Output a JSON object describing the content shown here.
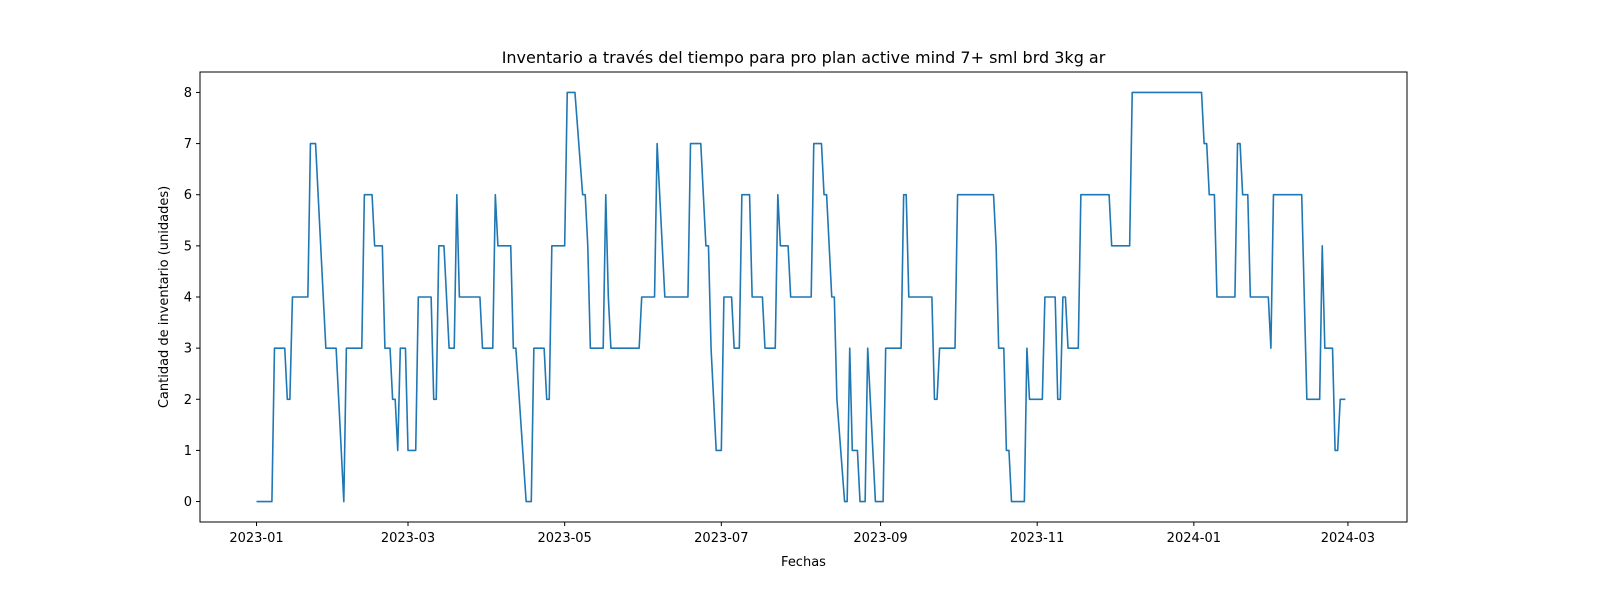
{
  "chart_data": {
    "type": "line",
    "title": "Inventario a través del tiempo para pro plan active mind 7+ sml brd 3kg ar",
    "xlabel": "Fechas",
    "ylabel": "Cantidad de inventario (unidades)",
    "x_tick_labels": [
      "2023-01",
      "2023-03",
      "2023-05",
      "2023-07",
      "2023-09",
      "2023-11",
      "2024-01",
      "2024-03"
    ],
    "y_tick_labels": [
      "0",
      "1",
      "2",
      "3",
      "4",
      "5",
      "6",
      "7",
      "8"
    ],
    "xlim": [
      "2022-12-10",
      "2024-03-24"
    ],
    "ylim": [
      -0.4,
      8.4
    ],
    "grid": false,
    "line_color": "#1f77b4",
    "series": [
      {
        "points": [
          [
            "2023-01-01",
            0
          ],
          [
            "2023-01-07",
            0
          ],
          [
            "2023-01-08",
            3
          ],
          [
            "2023-01-12",
            3
          ],
          [
            "2023-01-13",
            2
          ],
          [
            "2023-01-14",
            2
          ],
          [
            "2023-01-15",
            4
          ],
          [
            "2023-01-21",
            4
          ],
          [
            "2023-01-22",
            7
          ],
          [
            "2023-01-24",
            7
          ],
          [
            "2023-01-28",
            3
          ],
          [
            "2023-02-01",
            3
          ],
          [
            "2023-02-04",
            0
          ],
          [
            "2023-02-05",
            3
          ],
          [
            "2023-02-11",
            3
          ],
          [
            "2023-02-12",
            6
          ],
          [
            "2023-02-15",
            6
          ],
          [
            "2023-02-16",
            5
          ],
          [
            "2023-02-19",
            5
          ],
          [
            "2023-02-20",
            3
          ],
          [
            "2023-02-22",
            3
          ],
          [
            "2023-02-23",
            2
          ],
          [
            "2023-02-24",
            2
          ],
          [
            "2023-02-25",
            1
          ],
          [
            "2023-02-26",
            3
          ],
          [
            "2023-02-28",
            3
          ],
          [
            "2023-03-01",
            1
          ],
          [
            "2023-03-04",
            1
          ],
          [
            "2023-03-05",
            4
          ],
          [
            "2023-03-10",
            4
          ],
          [
            "2023-03-11",
            2
          ],
          [
            "2023-03-12",
            2
          ],
          [
            "2023-03-13",
            5
          ],
          [
            "2023-03-15",
            5
          ],
          [
            "2023-03-17",
            3
          ],
          [
            "2023-03-19",
            3
          ],
          [
            "2023-03-20",
            6
          ],
          [
            "2023-03-21",
            4
          ],
          [
            "2023-03-29",
            4
          ],
          [
            "2023-03-30",
            3
          ],
          [
            "2023-04-03",
            3
          ],
          [
            "2023-04-04",
            6
          ],
          [
            "2023-04-05",
            5
          ],
          [
            "2023-04-10",
            5
          ],
          [
            "2023-04-11",
            3
          ],
          [
            "2023-04-12",
            3
          ],
          [
            "2023-04-16",
            0
          ],
          [
            "2023-04-18",
            0
          ],
          [
            "2023-04-19",
            3
          ],
          [
            "2023-04-23",
            3
          ],
          [
            "2023-04-24",
            2
          ],
          [
            "2023-04-25",
            2
          ],
          [
            "2023-04-26",
            5
          ],
          [
            "2023-05-01",
            5
          ],
          [
            "2023-05-02",
            8
          ],
          [
            "2023-05-05",
            8
          ],
          [
            "2023-05-08",
            6
          ],
          [
            "2023-05-09",
            6
          ],
          [
            "2023-05-10",
            5
          ],
          [
            "2023-05-11",
            3
          ],
          [
            "2023-05-16",
            3
          ],
          [
            "2023-05-17",
            6
          ],
          [
            "2023-05-18",
            4
          ],
          [
            "2023-05-19",
            3
          ],
          [
            "2023-05-30",
            3
          ],
          [
            "2023-05-31",
            4
          ],
          [
            "2023-06-05",
            4
          ],
          [
            "2023-06-06",
            7
          ],
          [
            "2023-06-08",
            5
          ],
          [
            "2023-06-09",
            4
          ],
          [
            "2023-06-18",
            4
          ],
          [
            "2023-06-19",
            7
          ],
          [
            "2023-06-23",
            7
          ],
          [
            "2023-06-25",
            5
          ],
          [
            "2023-06-26",
            5
          ],
          [
            "2023-06-27",
            3
          ],
          [
            "2023-06-29",
            1
          ],
          [
            "2023-07-01",
            1
          ],
          [
            "2023-07-02",
            4
          ],
          [
            "2023-07-05",
            4
          ],
          [
            "2023-07-06",
            3
          ],
          [
            "2023-07-08",
            3
          ],
          [
            "2023-07-09",
            6
          ],
          [
            "2023-07-12",
            6
          ],
          [
            "2023-07-13",
            4
          ],
          [
            "2023-07-17",
            4
          ],
          [
            "2023-07-18",
            3
          ],
          [
            "2023-07-22",
            3
          ],
          [
            "2023-07-23",
            6
          ],
          [
            "2023-07-24",
            5
          ],
          [
            "2023-07-27",
            5
          ],
          [
            "2023-07-28",
            4
          ],
          [
            "2023-08-05",
            4
          ],
          [
            "2023-08-06",
            7
          ],
          [
            "2023-08-09",
            7
          ],
          [
            "2023-08-10",
            6
          ],
          [
            "2023-08-11",
            6
          ],
          [
            "2023-08-13",
            4
          ],
          [
            "2023-08-14",
            4
          ],
          [
            "2023-08-15",
            2
          ],
          [
            "2023-08-18",
            0
          ],
          [
            "2023-08-19",
            0
          ],
          [
            "2023-08-20",
            3
          ],
          [
            "2023-08-21",
            1
          ],
          [
            "2023-08-23",
            1
          ],
          [
            "2023-08-24",
            0
          ],
          [
            "2023-08-26",
            0
          ],
          [
            "2023-08-27",
            3
          ],
          [
            "2023-08-29",
            1
          ],
          [
            "2023-08-30",
            0
          ],
          [
            "2023-09-02",
            0
          ],
          [
            "2023-09-03",
            3
          ],
          [
            "2023-09-09",
            3
          ],
          [
            "2023-09-10",
            6
          ],
          [
            "2023-09-11",
            6
          ],
          [
            "2023-09-12",
            4
          ],
          [
            "2023-09-21",
            4
          ],
          [
            "2023-09-22",
            2
          ],
          [
            "2023-09-23",
            2
          ],
          [
            "2023-09-24",
            3
          ],
          [
            "2023-09-30",
            3
          ],
          [
            "2023-10-01",
            6
          ],
          [
            "2023-10-15",
            6
          ],
          [
            "2023-10-16",
            5
          ],
          [
            "2023-10-17",
            3
          ],
          [
            "2023-10-19",
            3
          ],
          [
            "2023-10-20",
            1
          ],
          [
            "2023-10-21",
            1
          ],
          [
            "2023-10-22",
            0
          ],
          [
            "2023-10-27",
            0
          ],
          [
            "2023-10-28",
            3
          ],
          [
            "2023-10-29",
            2
          ],
          [
            "2023-11-03",
            2
          ],
          [
            "2023-11-04",
            4
          ],
          [
            "2023-11-08",
            4
          ],
          [
            "2023-11-09",
            2
          ],
          [
            "2023-11-10",
            2
          ],
          [
            "2023-11-11",
            4
          ],
          [
            "2023-11-12",
            4
          ],
          [
            "2023-11-13",
            3
          ],
          [
            "2023-11-17",
            3
          ],
          [
            "2023-11-18",
            6
          ],
          [
            "2023-11-29",
            6
          ],
          [
            "2023-11-30",
            5
          ],
          [
            "2023-12-07",
            5
          ],
          [
            "2023-12-08",
            8
          ],
          [
            "2024-01-04",
            8
          ],
          [
            "2024-01-05",
            7
          ],
          [
            "2024-01-06",
            7
          ],
          [
            "2024-01-07",
            6
          ],
          [
            "2024-01-09",
            6
          ],
          [
            "2024-01-10",
            4
          ],
          [
            "2024-01-17",
            4
          ],
          [
            "2024-01-18",
            7
          ],
          [
            "2024-01-19",
            7
          ],
          [
            "2024-01-20",
            6
          ],
          [
            "2024-01-22",
            6
          ],
          [
            "2024-01-23",
            4
          ],
          [
            "2024-01-30",
            4
          ],
          [
            "2024-01-31",
            3
          ],
          [
            "2024-02-01",
            6
          ],
          [
            "2024-02-12",
            6
          ],
          [
            "2024-02-13",
            4
          ],
          [
            "2024-02-14",
            2
          ],
          [
            "2024-02-19",
            2
          ],
          [
            "2024-02-20",
            5
          ],
          [
            "2024-02-21",
            3
          ],
          [
            "2024-02-24",
            3
          ],
          [
            "2024-02-25",
            1
          ],
          [
            "2024-02-26",
            1
          ],
          [
            "2024-02-27",
            2
          ],
          [
            "2024-02-29",
            2
          ]
        ]
      }
    ]
  }
}
